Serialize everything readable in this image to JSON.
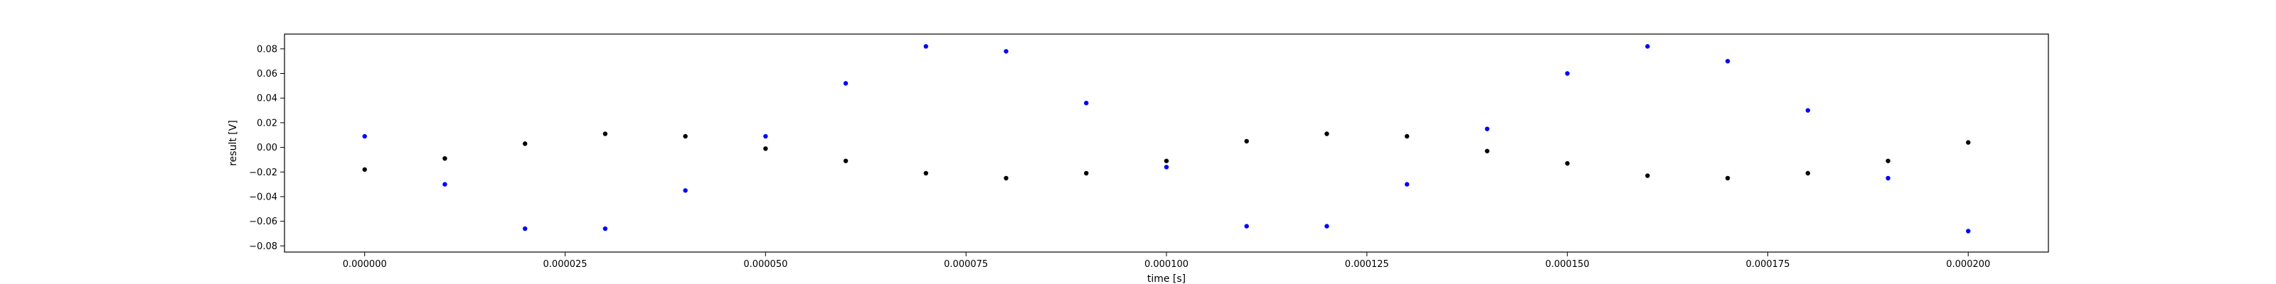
{
  "chart_data": {
    "type": "scatter",
    "xlabel": "time [s]",
    "ylabel": "result [V]",
    "xlim": [
      -1e-05,
      0.00021
    ],
    "ylim": [
      -0.085,
      0.092
    ],
    "grid": false,
    "x_ticks": [
      0.0,
      2.5e-05,
      5e-05,
      7.5e-05,
      0.0001,
      0.000125,
      0.00015,
      0.000175,
      0.0002
    ],
    "x_tick_labels": [
      "0.000000",
      "0.000025",
      "0.000050",
      "0.000075",
      "0.000100",
      "0.000125",
      "0.000150",
      "0.000175",
      "0.000200"
    ],
    "y_ticks": [
      -0.08,
      -0.06,
      -0.04,
      -0.02,
      0.0,
      0.02,
      0.04,
      0.06,
      0.08
    ],
    "y_tick_labels": [
      "−0.08",
      "−0.06",
      "−0.04",
      "−0.02",
      "0.00",
      "0.02",
      "0.04",
      "0.06",
      "0.08"
    ],
    "series": [
      {
        "color": "#0000ff",
        "points": [
          [
            0.0,
            0.009
          ],
          [
            1e-05,
            -0.03
          ],
          [
            2e-05,
            -0.066
          ],
          [
            3e-05,
            -0.066
          ],
          [
            4e-05,
            -0.035
          ],
          [
            5e-05,
            0.009
          ],
          [
            6e-05,
            0.052
          ],
          [
            7e-05,
            0.082
          ],
          [
            8e-05,
            0.078
          ],
          [
            9e-05,
            0.036
          ],
          [
            0.0001,
            -0.016
          ],
          [
            0.00011,
            -0.064
          ],
          [
            0.00012,
            -0.064
          ],
          [
            0.00013,
            -0.03
          ],
          [
            0.00014,
            0.015
          ],
          [
            0.00015,
            0.06
          ],
          [
            0.00016,
            0.082
          ],
          [
            0.00017,
            0.07
          ],
          [
            0.00018,
            0.03
          ],
          [
            0.00019,
            -0.025
          ],
          [
            0.0002,
            -0.068
          ]
        ]
      },
      {
        "color": "#000000",
        "points": [
          [
            0.0,
            -0.018
          ],
          [
            1e-05,
            -0.009
          ],
          [
            2e-05,
            0.003
          ],
          [
            3e-05,
            0.011
          ],
          [
            4e-05,
            0.009
          ],
          [
            5e-05,
            -0.001
          ],
          [
            6e-05,
            -0.011
          ],
          [
            7e-05,
            -0.021
          ],
          [
            8e-05,
            -0.025
          ],
          [
            9e-05,
            -0.021
          ],
          [
            0.0001,
            -0.011
          ],
          [
            0.00011,
            0.005
          ],
          [
            0.00012,
            0.011
          ],
          [
            0.00013,
            0.009
          ],
          [
            0.00014,
            -0.003
          ],
          [
            0.00015,
            -0.013
          ],
          [
            0.00016,
            -0.023
          ],
          [
            0.00017,
            -0.025
          ],
          [
            0.00018,
            -0.021
          ],
          [
            0.00019,
            -0.011
          ],
          [
            0.0002,
            0.004
          ]
        ]
      }
    ]
  }
}
